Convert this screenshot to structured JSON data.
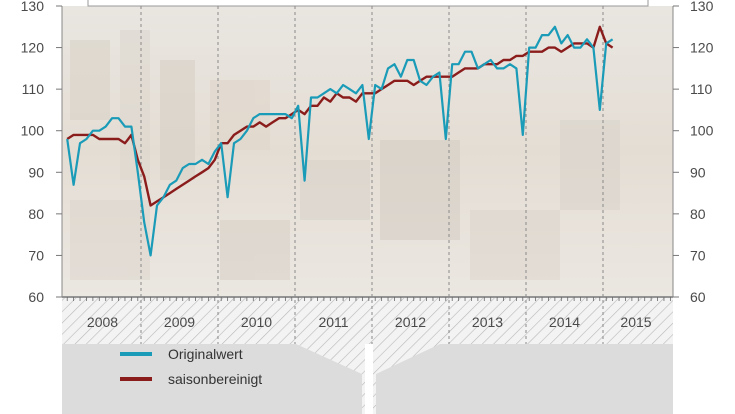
{
  "chart_data": {
    "type": "line",
    "title": "",
    "xlabel": "",
    "ylabel": "",
    "ylim": [
      60,
      130
    ],
    "yticks": [
      60,
      70,
      80,
      90,
      100,
      110,
      120,
      130
    ],
    "years": [
      "2008",
      "2009",
      "2010",
      "2011",
      "2012",
      "2013",
      "2014",
      "2015"
    ],
    "grid": "dashed vertical year separators",
    "legend_position": "bottom-left",
    "series": [
      {
        "name": "Originalwert",
        "color": "#1a9bb8",
        "values": [
          98,
          87,
          97,
          98,
          100,
          100,
          101,
          103,
          103,
          101,
          101,
          90,
          78,
          70,
          82,
          84,
          87,
          88,
          91,
          92,
          92,
          93,
          92,
          95,
          97,
          84,
          97,
          98,
          100,
          103,
          104,
          104,
          104,
          104,
          104,
          103,
          106,
          88,
          108,
          108,
          109,
          110,
          109,
          111,
          110,
          109,
          111,
          98,
          111,
          110,
          115,
          116,
          113,
          117,
          117,
          112,
          111,
          113,
          114,
          98,
          116,
          116,
          119,
          119,
          115,
          116,
          117,
          115,
          115,
          116,
          115,
          99,
          120,
          120,
          123,
          123,
          125,
          121,
          123,
          120,
          120,
          122,
          120,
          105,
          121,
          122
        ]
      },
      {
        "name": "saisonbereinigt",
        "color": "#8b1c1c",
        "values": [
          98,
          99,
          99,
          99,
          99,
          98,
          98,
          98,
          98,
          97,
          99,
          93,
          89,
          82,
          83,
          84,
          85,
          86,
          87,
          88,
          89,
          90,
          91,
          93,
          97,
          97,
          99,
          100,
          101,
          101,
          102,
          101,
          102,
          103,
          103,
          104,
          105,
          104,
          106,
          106,
          108,
          107,
          109,
          108,
          108,
          107,
          109,
          109,
          109,
          110,
          111,
          112,
          112,
          112,
          111,
          112,
          113,
          113,
          113,
          113,
          113,
          114,
          115,
          115,
          115,
          116,
          116,
          116,
          117,
          117,
          118,
          118,
          119,
          119,
          119,
          120,
          120,
          119,
          120,
          121,
          121,
          121,
          120,
          125,
          121,
          120
        ]
      }
    ]
  }
}
